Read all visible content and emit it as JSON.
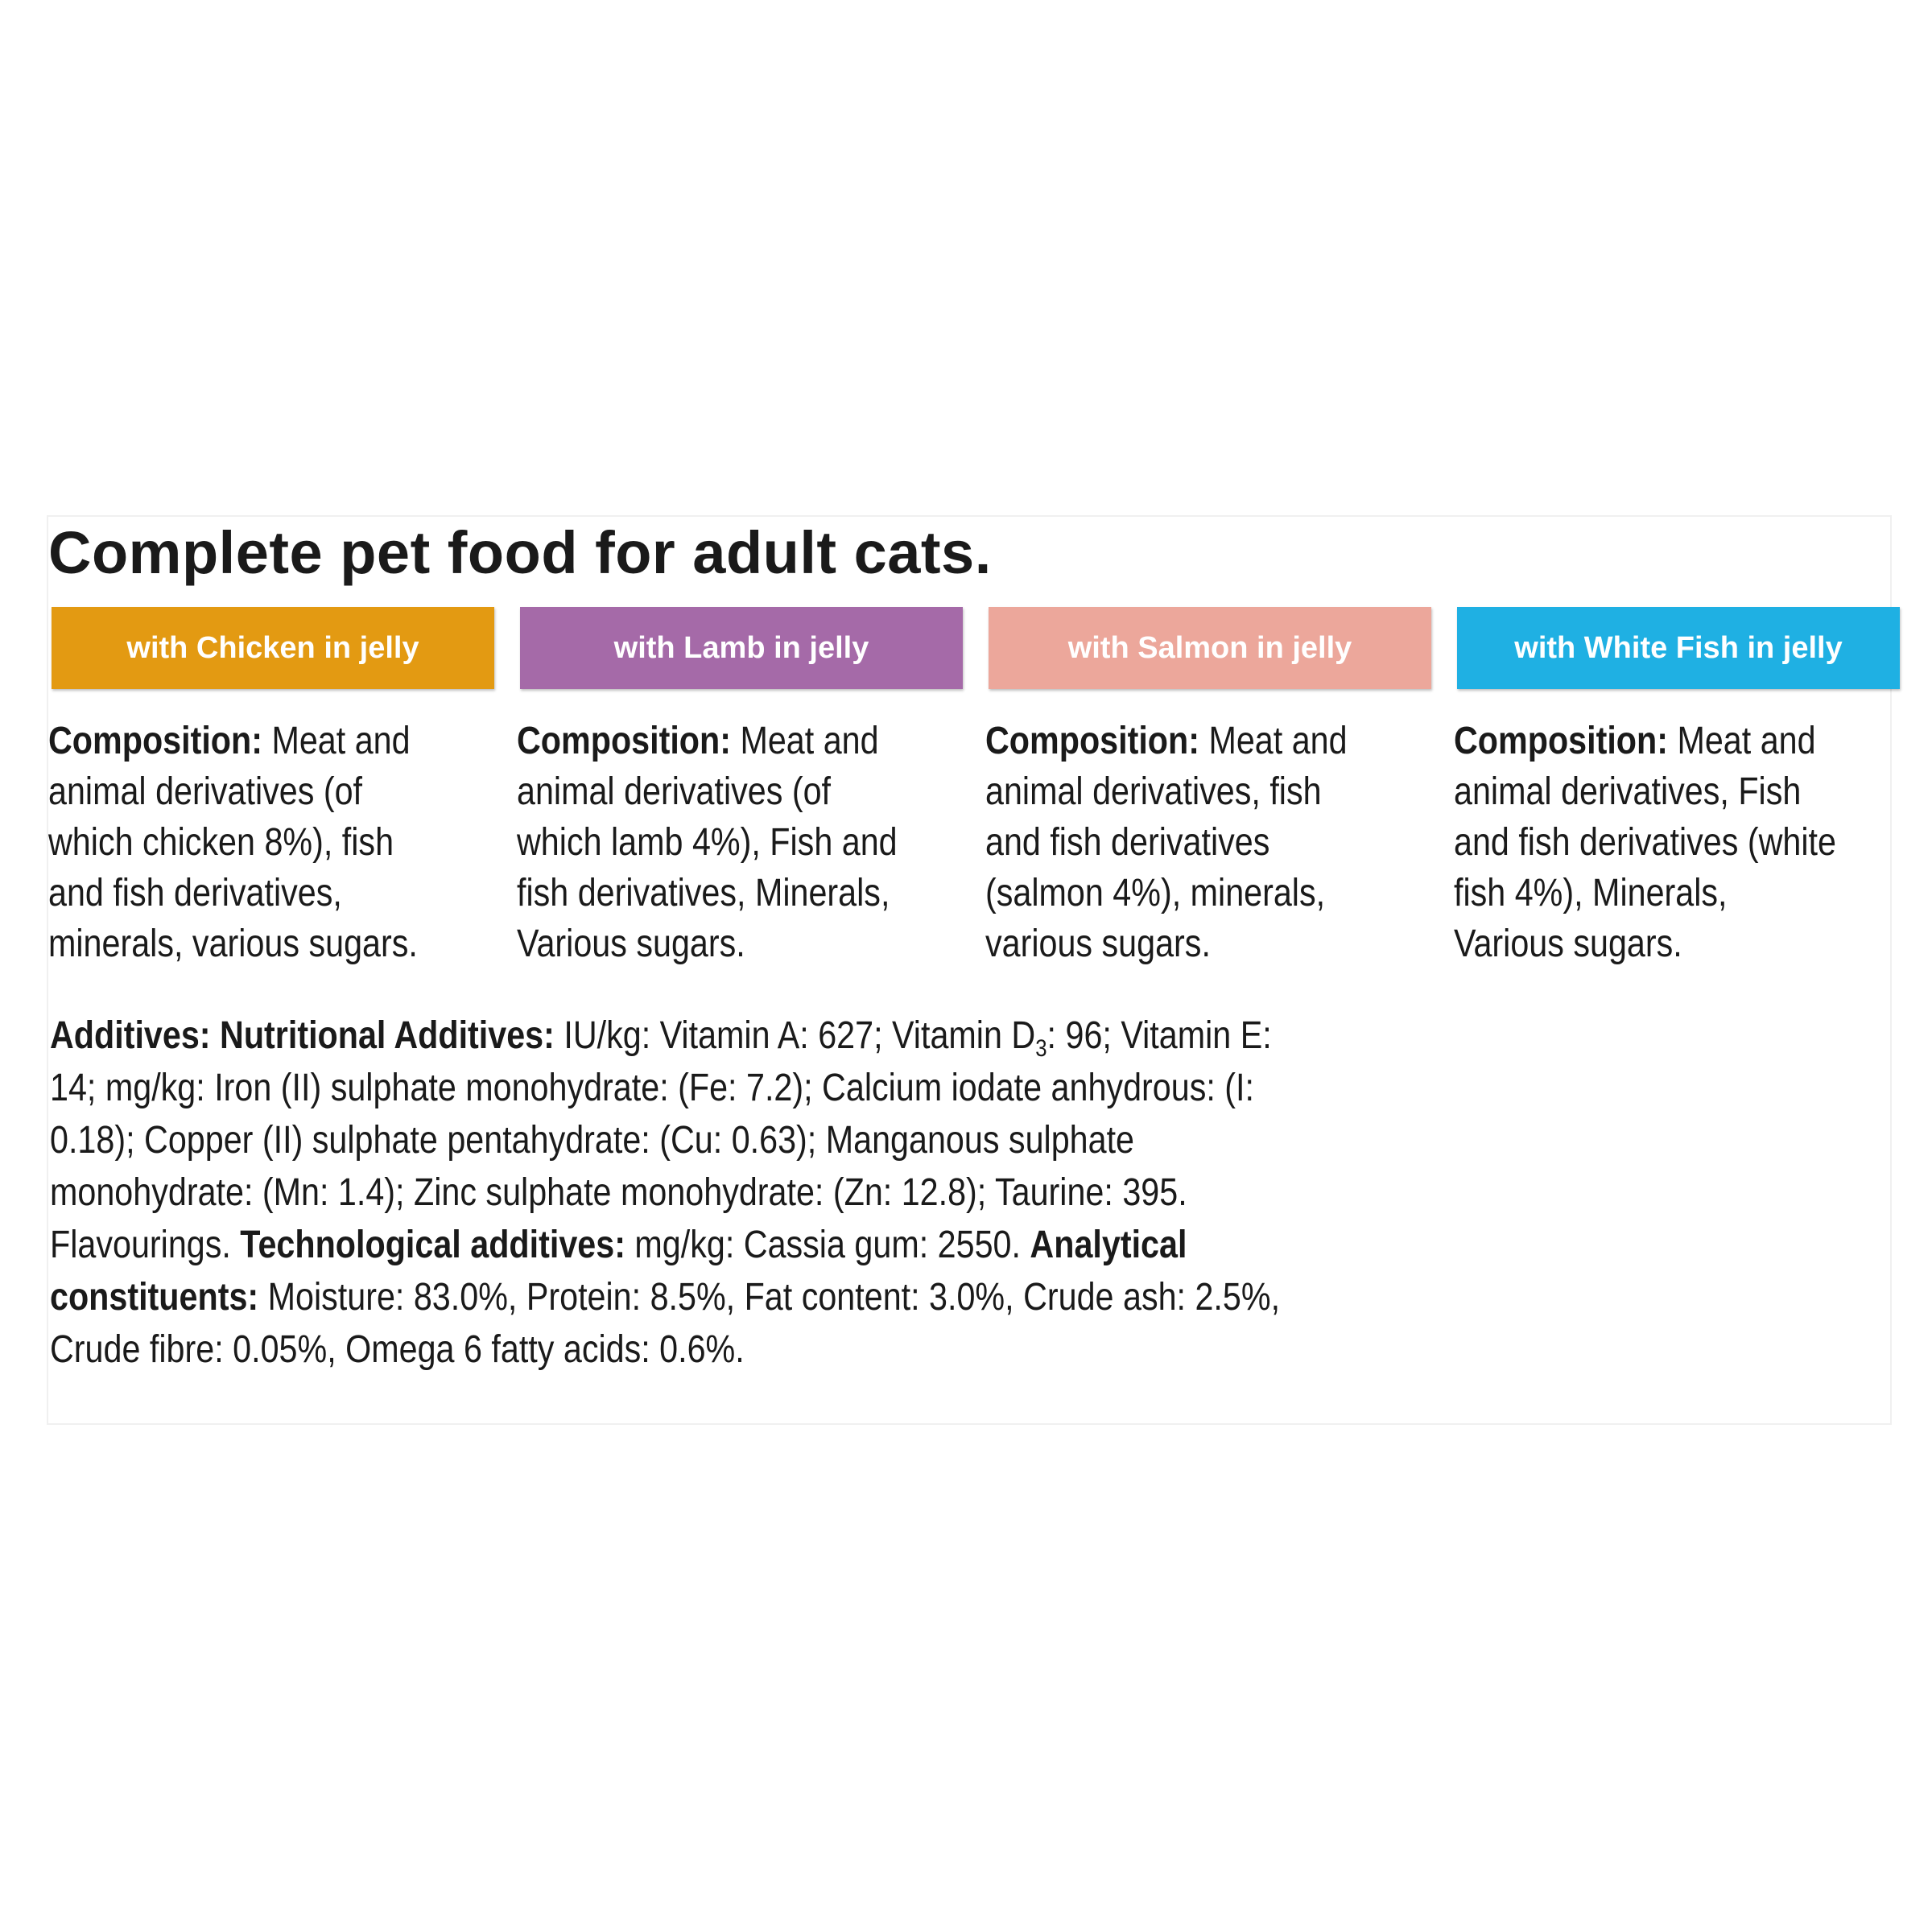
{
  "title": "Complete pet food for adult cats.",
  "variants": [
    {
      "label": "with Chicken in jelly",
      "color": "#e39a12",
      "composition_label": "Composition:",
      "composition_text": " Meat and animal derivatives (of which chicken 8%), fish and fish derivatives, minerals, various sugars."
    },
    {
      "label": "with Lamb in jelly",
      "color": "#a56aa8",
      "composition_label": "Composition:",
      "composition_text": " Meat and animal derivatives (of which lamb 4%), Fish and fish derivatives, Minerals, Various sugars."
    },
    {
      "label": "with Salmon in jelly",
      "color": "#eca79b",
      "composition_label": "Composition:",
      "composition_text": " Meat and animal derivatives, fish and fish derivatives (salmon 4%), minerals, various sugars."
    },
    {
      "label": "with White Fish in jelly",
      "color": "#1fb0e3",
      "composition_label": "Composition:",
      "composition_text": " Meat and animal derivatives, Fish and fish derivatives (white fish 4%), Minerals, Various sugars."
    }
  ],
  "additives": {
    "heading": "Additives: Nutritional Additives:",
    "text_1": " IU/kg: Vitamin A: 627; Vitamin D",
    "d_subscript": "3",
    "text_2": ": 96; Vitamin E: 14; mg/kg: Iron (II) sulphate monohydrate: (Fe: 7.2); Calcium iodate anhydrous: (I: 0.18); Copper (II) sulphate pentahydrate: (Cu: 0.63); Manganous sulphate monohydrate: (Mn: 1.4); Zinc sulphate monohydrate: (Zn: 12.8); Taurine: 395. Flavourings. ",
    "tech_heading": "Technological additives:",
    "text_3": " mg/kg: Cassia gum: 2550.  ",
    "analytical_heading": "Analytical constituents:",
    "text_4": " Moisture: 83.0%, Protein: 8.5%, Fat content: 3.0%, Crude ash: 2.5%, Crude fibre: 0.05%, Omega 6 fatty acids: 0.6%."
  }
}
